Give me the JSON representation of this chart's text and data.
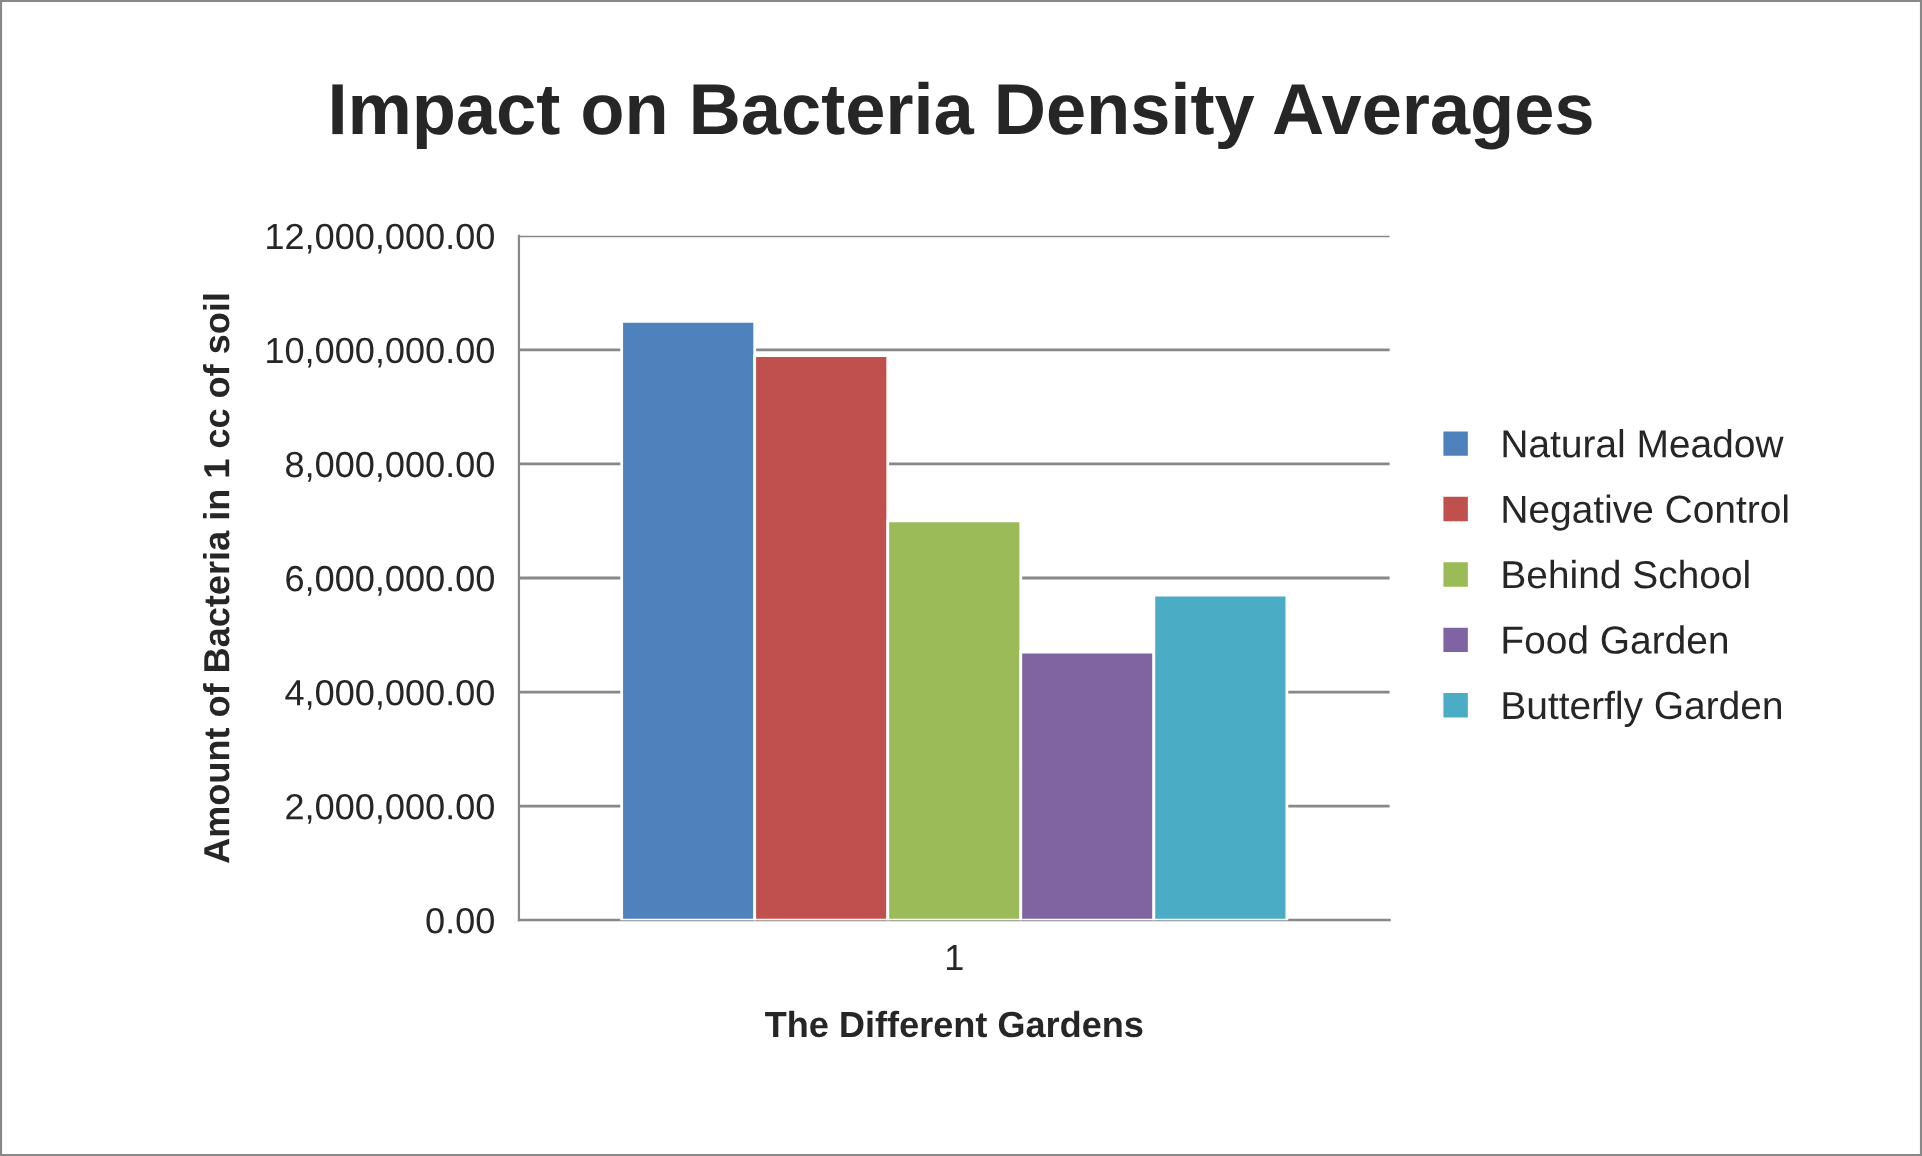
{
  "chart_data": {
    "type": "bar",
    "title": "Impact on Bacteria Density Averages",
    "xlabel": "The Different Gardens",
    "ylabel": "Amount of Bacteria in 1 cc of soil",
    "categories": [
      "1"
    ],
    "series": [
      {
        "name": "Natural Meadow",
        "color": "#4f81bd",
        "values": [
          10500000
        ]
      },
      {
        "name": "Negative Control",
        "color": "#c0504d",
        "values": [
          9900000
        ]
      },
      {
        "name": "Behind School",
        "color": "#9bbb59",
        "values": [
          7000000
        ]
      },
      {
        "name": "Food Garden",
        "color": "#8064a2",
        "values": [
          4700000
        ]
      },
      {
        "name": "Butterfly Garden",
        "color": "#4bacc6",
        "values": [
          5700000
        ]
      }
    ],
    "ylim": [
      0,
      12000000
    ],
    "yticks": [
      {
        "value": 0,
        "label": "0.00"
      },
      {
        "value": 2000000,
        "label": "2,000,000.00"
      },
      {
        "value": 4000000,
        "label": "4,000,000.00"
      },
      {
        "value": 6000000,
        "label": "6,000,000.00"
      },
      {
        "value": 8000000,
        "label": "8,000,000.00"
      },
      {
        "value": 10000000,
        "label": "10,000,000.00"
      },
      {
        "value": 12000000,
        "label": "12,000,000.00"
      }
    ],
    "grid": "y",
    "legend": "right"
  }
}
